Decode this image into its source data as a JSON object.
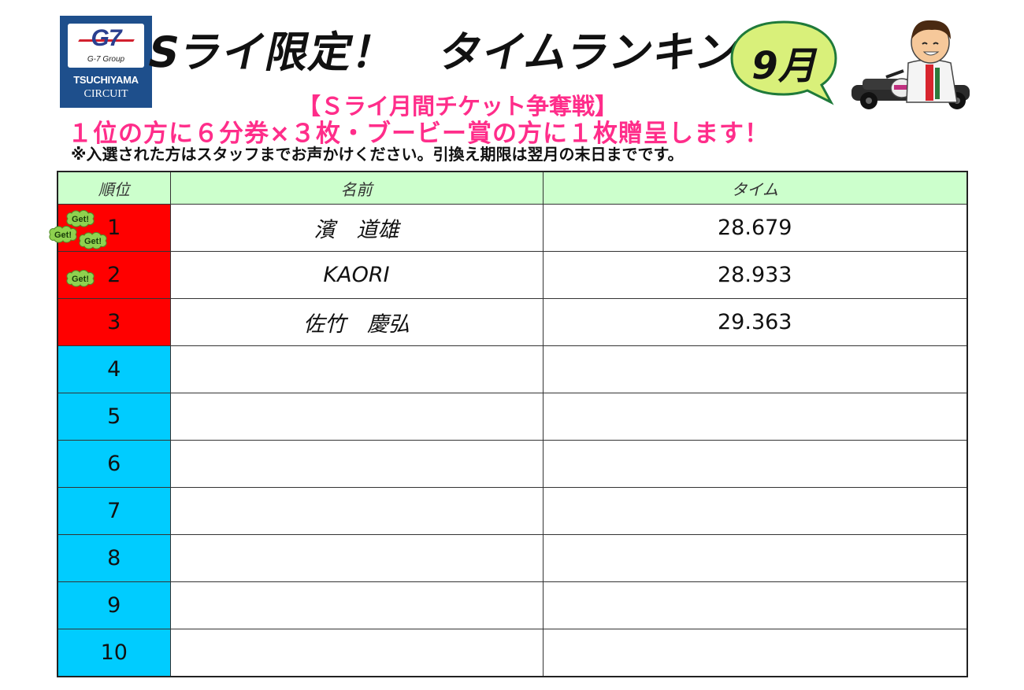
{
  "logo": {
    "brand": "G7",
    "group": "G-7 Group",
    "line1": "TSUCHIYAMA",
    "line2": "CIRCUIT"
  },
  "header": {
    "title": "Sライ限定！　タイムランキング",
    "month": "9月",
    "subtitle": "【Ｓライ月間チケット争奪戦】",
    "prize": "１位の方に６分券×３枚・ブービー賞の方に１枚贈呈します！",
    "note": "※入選された方はスタッフまでお声かけください。引換え期限は翌月の末日までです。"
  },
  "table": {
    "headers": [
      "順位",
      "名前",
      "タイム"
    ],
    "rows": [
      {
        "rank": "1",
        "name": "濱　道雄",
        "time": "28.679",
        "badges": 3,
        "highlight": "red"
      },
      {
        "rank": "2",
        "name": "KAORI",
        "time": "28.933",
        "badges": 1,
        "highlight": "red"
      },
      {
        "rank": "3",
        "name": "佐竹　慶弘",
        "time": "29.363",
        "badges": 0,
        "highlight": "red"
      },
      {
        "rank": "4",
        "name": "",
        "time": "",
        "badges": 0,
        "highlight": "blue"
      },
      {
        "rank": "5",
        "name": "",
        "time": "",
        "badges": 0,
        "highlight": "blue"
      },
      {
        "rank": "6",
        "name": "",
        "time": "",
        "badges": 0,
        "highlight": "blue"
      },
      {
        "rank": "7",
        "name": "",
        "time": "",
        "badges": 0,
        "highlight": "blue"
      },
      {
        "rank": "8",
        "name": "",
        "time": "",
        "badges": 0,
        "highlight": "blue"
      },
      {
        "rank": "9",
        "name": "",
        "time": "",
        "badges": 0,
        "highlight": "blue"
      },
      {
        "rank": "10",
        "name": "",
        "time": "",
        "badges": 0,
        "highlight": "blue"
      }
    ],
    "badge_text": "Get!"
  },
  "colors": {
    "top3": "#ff0000",
    "others": "#00ccff",
    "header": "#ccffcc",
    "accent": "#ff2d8a",
    "badge": "#8fd14f"
  },
  "icons": {
    "mascot": "kart-driver-mascot-icon",
    "badge": "get-badge-icon"
  }
}
